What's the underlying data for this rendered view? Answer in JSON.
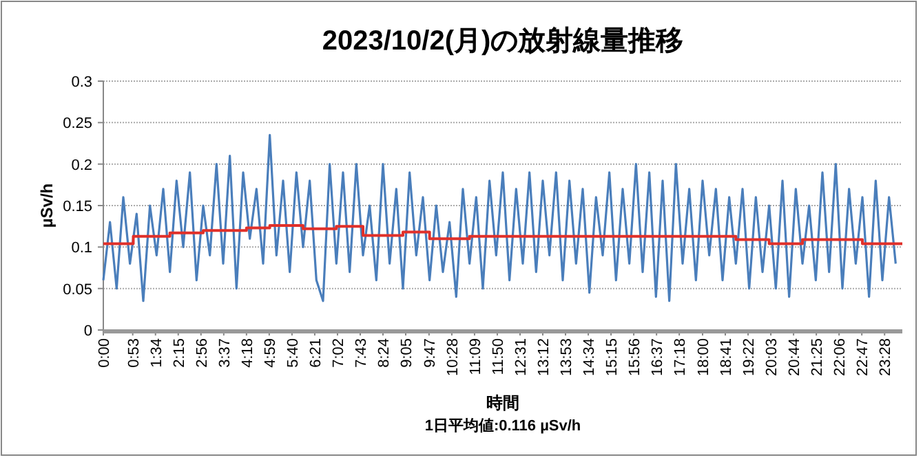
{
  "chart_data": {
    "type": "line",
    "title": "2023/10/2(月)の放射線量推移",
    "xlabel": "時間",
    "ylabel": "µSv/h",
    "annotations": [
      "1日平均値:0.116 µSv/h"
    ],
    "xlim": [
      0,
      24
    ],
    "ylim": [
      0,
      0.3
    ],
    "yticks": [
      0,
      0.05,
      0.1,
      0.15,
      0.2,
      0.25,
      0.3
    ],
    "xticks": [
      {
        "value": 0,
        "label": "0:00"
      },
      {
        "value": 0.883,
        "label": "0:53"
      },
      {
        "value": 1.567,
        "label": "1:34"
      },
      {
        "value": 2.25,
        "label": "2:15"
      },
      {
        "value": 2.933,
        "label": "2:56"
      },
      {
        "value": 3.617,
        "label": "3:37"
      },
      {
        "value": 4.3,
        "label": "4:18"
      },
      {
        "value": 4.983,
        "label": "4:59"
      },
      {
        "value": 5.667,
        "label": "5:40"
      },
      {
        "value": 6.35,
        "label": "6:21"
      },
      {
        "value": 7.033,
        "label": "7:02"
      },
      {
        "value": 7.717,
        "label": "7:43"
      },
      {
        "value": 8.4,
        "label": "8:24"
      },
      {
        "value": 9.083,
        "label": "9:05"
      },
      {
        "value": 9.783,
        "label": "9:47"
      },
      {
        "value": 10.467,
        "label": "10:28"
      },
      {
        "value": 11.15,
        "label": "11:09"
      },
      {
        "value": 11.833,
        "label": "11:50"
      },
      {
        "value": 12.517,
        "label": "12:31"
      },
      {
        "value": 13.2,
        "label": "13:12"
      },
      {
        "value": 13.883,
        "label": "13:53"
      },
      {
        "value": 14.567,
        "label": "14:34"
      },
      {
        "value": 15.25,
        "label": "15:15"
      },
      {
        "value": 15.933,
        "label": "15:56"
      },
      {
        "value": 16.617,
        "label": "16:37"
      },
      {
        "value": 17.3,
        "label": "17:18"
      },
      {
        "value": 18,
        "label": "18:00"
      },
      {
        "value": 18.683,
        "label": "18:41"
      },
      {
        "value": 19.367,
        "label": "19:22"
      },
      {
        "value": 20.05,
        "label": "20:03"
      },
      {
        "value": 20.733,
        "label": "20:44"
      },
      {
        "value": 21.417,
        "label": "21:25"
      },
      {
        "value": 22.1,
        "label": "22:06"
      },
      {
        "value": 22.783,
        "label": "22:47"
      },
      {
        "value": 23.467,
        "label": "23:28"
      }
    ],
    "grid": "y",
    "series": [
      {
        "color": "#4a7ebb",
        "x": [
          0,
          0.2,
          0.4,
          0.6,
          0.8,
          1,
          1.2,
          1.4,
          1.6,
          1.8,
          2,
          2.2,
          2.4,
          2.6,
          2.8,
          3,
          3.2,
          3.4,
          3.6,
          3.8,
          4,
          4.2,
          4.4,
          4.6,
          4.8,
          5,
          5.2,
          5.4,
          5.6,
          5.8,
          6,
          6.2,
          6.4,
          6.6,
          6.8,
          7,
          7.2,
          7.4,
          7.6,
          7.8,
          8,
          8.2,
          8.4,
          8.6,
          8.8,
          9,
          9.2,
          9.4,
          9.6,
          9.8,
          10,
          10.2,
          10.4,
          10.6,
          10.8,
          11,
          11.2,
          11.4,
          11.6,
          11.8,
          12,
          12.2,
          12.4,
          12.6,
          12.8,
          13,
          13.2,
          13.4,
          13.6,
          13.8,
          14,
          14.2,
          14.4,
          14.6,
          14.8,
          15,
          15.2,
          15.4,
          15.6,
          15.8,
          16,
          16.2,
          16.4,
          16.6,
          16.8,
          17,
          17.2,
          17.4,
          17.6,
          17.8,
          18,
          18.2,
          18.4,
          18.6,
          18.8,
          19,
          19.2,
          19.4,
          19.6,
          19.8,
          20,
          20.2,
          20.4,
          20.6,
          20.8,
          21,
          21.2,
          21.4,
          21.6,
          21.8,
          22,
          22.2,
          22.4,
          22.6,
          22.8,
          23,
          23.2,
          23.4,
          23.6,
          23.8
        ],
        "values": [
          0.06,
          0.13,
          0.05,
          0.16,
          0.08,
          0.14,
          0.035,
          0.15,
          0.09,
          0.17,
          0.07,
          0.18,
          0.1,
          0.19,
          0.06,
          0.15,
          0.09,
          0.2,
          0.08,
          0.21,
          0.05,
          0.19,
          0.11,
          0.17,
          0.08,
          0.235,
          0.09,
          0.18,
          0.07,
          0.19,
          0.1,
          0.18,
          0.06,
          0.035,
          0.2,
          0.08,
          0.19,
          0.07,
          0.2,
          0.09,
          0.15,
          0.06,
          0.2,
          0.08,
          0.17,
          0.05,
          0.19,
          0.09,
          0.16,
          0.06,
          0.15,
          0.07,
          0.13,
          0.04,
          0.17,
          0.08,
          0.16,
          0.05,
          0.18,
          0.09,
          0.19,
          0.06,
          0.17,
          0.08,
          0.19,
          0.07,
          0.18,
          0.09,
          0.19,
          0.06,
          0.18,
          0.08,
          0.17,
          0.045,
          0.16,
          0.09,
          0.19,
          0.06,
          0.17,
          0.08,
          0.2,
          0.07,
          0.19,
          0.04,
          0.18,
          0.035,
          0.2,
          0.08,
          0.17,
          0.06,
          0.18,
          0.09,
          0.17,
          0.06,
          0.16,
          0.08,
          0.17,
          0.05,
          0.16,
          0.07,
          0.15,
          0.05,
          0.18,
          0.04,
          0.17,
          0.08,
          0.15,
          0.06,
          0.19,
          0.07,
          0.2,
          0.05,
          0.17,
          0.08,
          0.16,
          0.04,
          0.18,
          0.06,
          0.16,
          0.08
        ]
      },
      {
        "type": "step",
        "color": "#e0302a",
        "x": [
          0,
          0.9,
          2,
          3,
          4.3,
          5,
          6,
          7,
          7.8,
          9,
          9.8,
          11,
          19,
          20,
          21,
          22.8,
          24
        ],
        "values": [
          0.104,
          0.113,
          0.117,
          0.12,
          0.123,
          0.126,
          0.122,
          0.125,
          0.114,
          0.118,
          0.11,
          0.113,
          0.109,
          0.104,
          0.109,
          0.104,
          0.104
        ]
      }
    ]
  }
}
